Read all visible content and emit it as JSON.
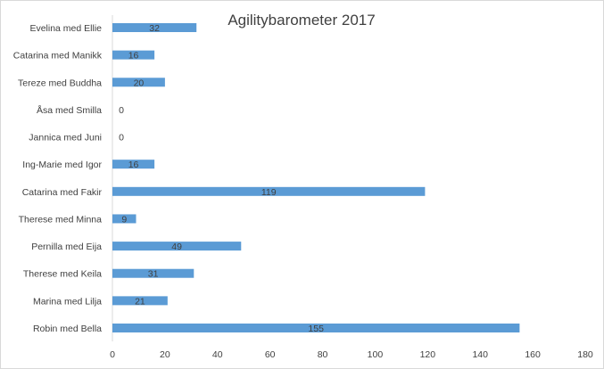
{
  "chart_data": {
    "type": "bar",
    "orientation": "horizontal",
    "title": "Agilitybarometer 2017",
    "xlabel": "",
    "ylabel": "",
    "categories": [
      "Evelina med Ellie",
      "Catarina med Manikk",
      "Tereze med Buddha",
      "Åsa med Smilla",
      "Jannica med Juni",
      "Ing-Marie med Igor",
      "Catarina med Fakir",
      "Therese med Minna",
      "Pernilla med Eija",
      "Therese med Keila",
      "Marina med Lilja",
      "Robin med Bella"
    ],
    "values": [
      32,
      16,
      20,
      0,
      0,
      16,
      119,
      9,
      49,
      31,
      21,
      155
    ],
    "xlim": [
      0,
      180
    ],
    "xticks": [
      0,
      20,
      40,
      60,
      80,
      100,
      120,
      140,
      160,
      180
    ],
    "grid": false,
    "bar_color": "#5b9bd5",
    "show_data_labels": true
  }
}
